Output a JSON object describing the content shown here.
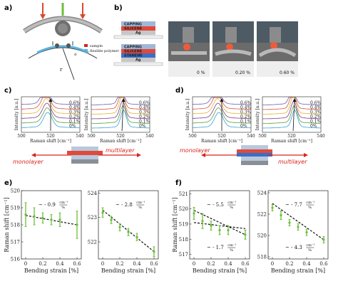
{
  "panels": {
    "a": "a)",
    "b": "b)",
    "c": "c)",
    "d": "d)",
    "e": "e)",
    "f": "f)"
  },
  "panel_a": {
    "legend_sample": "sample",
    "legend_polymer": "flexible polymer",
    "label_d": "d",
    "label_r": "r",
    "colors": {
      "sample": "#d9231c",
      "polymer": "#5ab4e0",
      "arrow": "#d94a2a",
      "green": "#6cbf3a"
    }
  },
  "panel_b": {
    "stack1": [
      "CAPPING",
      "SILICENE",
      "Ag"
    ],
    "stack2": [
      "CAPPING",
      "SILICENE",
      "STANENE",
      "Ag"
    ],
    "photo_labels": [
      "0 %",
      "0.20 %",
      "0.60 %"
    ]
  },
  "spectra": {
    "ylabel": "Intensity [a.u.]",
    "xlabel": "Raman shift [cm⁻¹]",
    "xticks": [
      "500",
      "520",
      "540"
    ],
    "strains": [
      "0.6%",
      "0.4%",
      "0.3%",
      "0.2%",
      "0.1%",
      "0%"
    ],
    "colors": [
      "#6f5fb0",
      "#d4553b",
      "#e0b232",
      "#7a3b95",
      "#5b9e3a",
      "#3aa0d6"
    ]
  },
  "schematic": {
    "left_label": "monolayer",
    "right_label": "multilayer"
  },
  "chart_data": [
    {
      "type": "scatter",
      "panel": "e-left",
      "xlabel": "Bending strain [%]",
      "ylabel": "Raman shift [cm⁻¹]",
      "xticks": [
        "0",
        "0.2",
        "0.4",
        "0.6"
      ],
      "yticks": [
        "516",
        "517",
        "518",
        "519",
        "520"
      ],
      "ylim": [
        516,
        520
      ],
      "x": [
        0,
        0.1,
        0.2,
        0.3,
        0.4,
        0.6
      ],
      "y": [
        518.6,
        518.5,
        518.4,
        518.3,
        518.3,
        518.0
      ],
      "err": [
        0.7,
        0.5,
        0.3,
        0.3,
        0.4,
        0.8
      ],
      "fit_x": [
        0,
        0.6
      ],
      "fit_y": [
        518.55,
        518.0
      ],
      "annotation": "~ - 0.9",
      "annotation_unit_top": "cm⁻¹",
      "annotation_unit_bottom": "%"
    },
    {
      "type": "scatter",
      "panel": "e-right",
      "xlabel": "Bending strain [%]",
      "ylabel": "",
      "xticks": [
        "0",
        "0.2",
        "0.4",
        "0.6"
      ],
      "yticks": [
        "522",
        "523",
        "524"
      ],
      "ylim": [
        521.3,
        524.1
      ],
      "x": [
        0,
        0.1,
        0.2,
        0.3,
        0.4,
        0.6
      ],
      "y": [
        523.2,
        522.9,
        522.6,
        522.4,
        522.2,
        521.6
      ],
      "err": [
        0.2,
        0.15,
        0.15,
        0.15,
        0.15,
        0.2
      ],
      "fit_x": [
        0,
        0.6
      ],
      "fit_y": [
        523.3,
        521.6
      ],
      "annotation": "~ - 2.8",
      "annotation_unit_top": "cm⁻¹",
      "annotation_unit_bottom": "%"
    },
    {
      "type": "scatter",
      "panel": "f-left",
      "xlabel": "Bending strain [%]",
      "ylabel": "Raman shift [cm⁻¹]",
      "xticks": [
        "0",
        "0.2",
        "0.4",
        "0.6"
      ],
      "yticks": [
        "517",
        "518",
        "519",
        "520",
        "521"
      ],
      "ylim": [
        516.7,
        521.2
      ],
      "x": [
        0,
        0.1,
        0.2,
        0.3,
        0.4,
        0.6
      ],
      "y": [
        519.7,
        519.2,
        518.9,
        518.6,
        518.6,
        518.3
      ],
      "err": [
        0.4,
        0.5,
        0.3,
        0.3,
        0.3,
        0.3
      ],
      "fit_x": [
        0,
        0.6
      ],
      "fit_y": [
        519.9,
        518.3
      ],
      "fit2_x": [
        0,
        0.6
      ],
      "fit2_y": [
        519.1,
        518.7
      ],
      "annotation": "~ - 5.5",
      "annotation2": "~ - 1.7",
      "annotation_unit_top": "cm⁻¹",
      "annotation_unit_bottom": "%"
    },
    {
      "type": "scatter",
      "panel": "f-right",
      "xlabel": "Bending strain [%]",
      "ylabel": "",
      "xticks": [
        "0",
        "0.2",
        "0.4",
        "0.6"
      ],
      "yticks": [
        "518",
        "520",
        "522",
        "524"
      ],
      "ylim": [
        517.8,
        524.2
      ],
      "x": [
        0,
        0.1,
        0.2,
        0.3,
        0.4,
        0.6
      ],
      "y": [
        522.6,
        521.9,
        521.2,
        520.8,
        520.3,
        519.6
      ],
      "err": [
        0.3,
        0.4,
        0.3,
        0.3,
        0.3,
        0.3
      ],
      "fit_x": [
        0,
        0.6
      ],
      "fit_y": [
        523.0,
        519.6
      ],
      "annotation": "~ - 7.7",
      "annotation2": "~ - 4.3",
      "annotation_unit_top": "cm⁻¹",
      "annotation_unit_bottom": "%"
    }
  ]
}
